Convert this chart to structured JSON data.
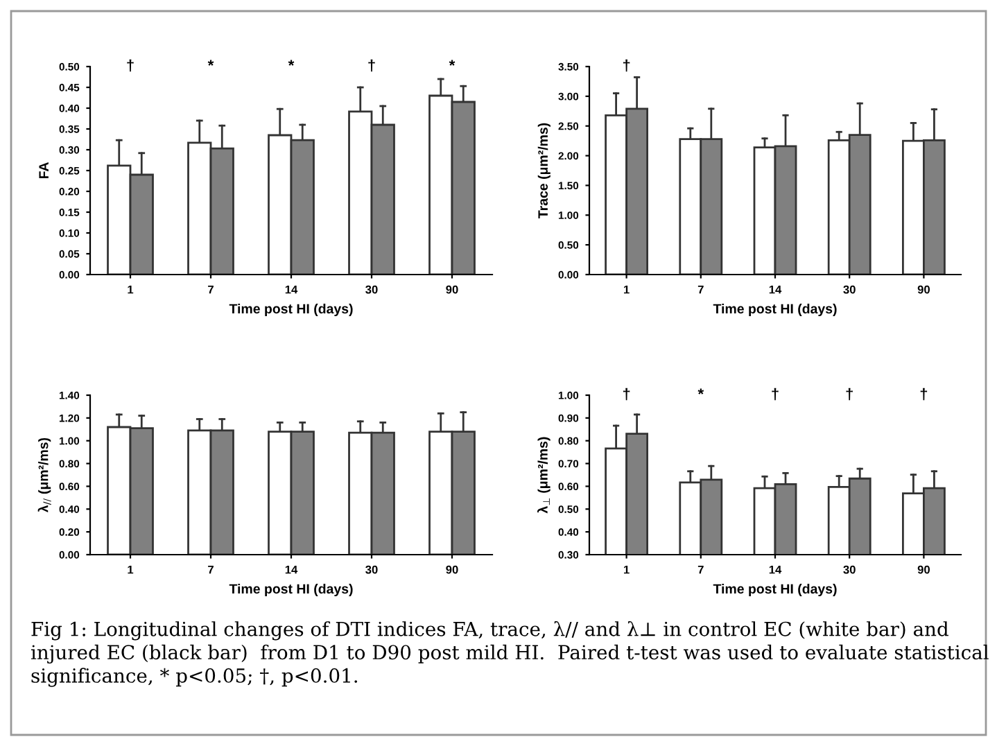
{
  "chart_data": [
    {
      "type": "bar",
      "ylabel": "FA",
      "xlabel": "Time post HI (days)",
      "categories": [
        "1",
        "7",
        "14",
        "30",
        "90"
      ],
      "series": [
        {
          "color": "#ffffff",
          "values": [
            0.262,
            0.317,
            0.335,
            0.392,
            0.43
          ],
          "errors": [
            [
              0.262,
              0.323
            ],
            [
              0.317,
              0.37
            ],
            [
              0.335,
              0.398
            ],
            [
              0.392,
              0.45
            ],
            [
              0.43,
              0.47
            ]
          ]
        },
        {
          "color": "#808080",
          "values": [
            0.24,
            0.303,
            0.323,
            0.36,
            0.415
          ],
          "errors": [
            [
              0.24,
              0.292
            ],
            [
              0.303,
              0.358
            ],
            [
              0.323,
              0.36
            ],
            [
              0.36,
              0.405
            ],
            [
              0.415,
              0.453
            ]
          ]
        }
      ],
      "ylim": [
        0,
        0.5
      ],
      "yticks": [
        {
          "value": 0,
          "label": "0.00"
        },
        {
          "value": 0.05,
          "label": "0.05"
        },
        {
          "value": 0.1,
          "label": "0.10"
        },
        {
          "value": 0.15,
          "label": "0.15"
        },
        {
          "value": 0.2,
          "label": "0.20"
        },
        {
          "value": 0.25,
          "label": "0.25"
        },
        {
          "value": 0.3,
          "label": "0.30"
        },
        {
          "value": 0.35,
          "label": "0.35"
        },
        {
          "value": 0.4,
          "label": "0.40"
        },
        {
          "value": 0.45,
          "label": "0.45"
        },
        {
          "value": 0.5,
          "label": "0.50"
        }
      ],
      "annotations": [
        "†",
        "*",
        "*",
        "†",
        "*",
        "Fig 1: Longitudinal changes of DTI indices FA, trace, λ// and λ⊥ in control EC (white bar) and injured EC (black bar)  from D1 to D90 post mild HI.  Paired t-test was used to evaluate statistical significance, * p<0.05; †, p<0.01."
      ],
      "grid": false
    },
    {
      "type": "bar",
      "ylabel": "Trace (μm²/ms)",
      "xlabel": "Time post HI (days)",
      "categories": [
        "1",
        "7",
        "14",
        "30",
        "90"
      ],
      "series": [
        {
          "color": "#ffffff",
          "values": [
            2.68,
            2.28,
            2.14,
            2.26,
            2.25
          ],
          "errors": [
            [
              2.68,
              3.05
            ],
            [
              2.28,
              2.46
            ],
            [
              2.14,
              2.29
            ],
            [
              2.26,
              2.4
            ],
            [
              2.25,
              2.55
            ]
          ]
        },
        {
          "color": "#808080",
          "values": [
            2.79,
            2.28,
            2.16,
            2.35,
            2.26
          ],
          "errors": [
            [
              2.79,
              3.32
            ],
            [
              2.28,
              2.79
            ],
            [
              2.16,
              2.68
            ],
            [
              2.35,
              2.88
            ],
            [
              2.26,
              2.78
            ]
          ]
        }
      ],
      "ylim": [
        0,
        3.5
      ],
      "yticks": [
        {
          "value": 0,
          "label": "0.00"
        },
        {
          "value": 0.5,
          "label": "0.50"
        },
        {
          "value": 1,
          "label": "1.00"
        },
        {
          "value": 1.5,
          "label": "1.50"
        },
        {
          "value": 2,
          "label": "2.00"
        },
        {
          "value": 2.5,
          "label": "2.50"
        },
        {
          "value": 3,
          "label": "3.00"
        },
        {
          "value": 3.5,
          "label": "3.50"
        }
      ],
      "annotations": [
        "†"
      ],
      "grid": false
    },
    {
      "type": "bar",
      "ylabel": "λ$_{//}$ (μm²/ms)",
      "xlabel": "Time post HI (days)",
      "categories": [
        "1",
        "7",
        "14",
        "30",
        "90"
      ],
      "series": [
        {
          "color": "#ffffff",
          "values": [
            1.12,
            1.09,
            1.08,
            1.07,
            1.08
          ],
          "errors": [
            [
              1.12,
              1.23
            ],
            [
              1.09,
              1.19
            ],
            [
              1.08,
              1.16
            ],
            [
              1.07,
              1.17
            ],
            [
              1.08,
              1.24
            ]
          ]
        },
        {
          "color": "#808080",
          "values": [
            1.11,
            1.09,
            1.08,
            1.07,
            1.08
          ],
          "errors": [
            [
              1.11,
              1.22
            ],
            [
              1.09,
              1.19
            ],
            [
              1.08,
              1.16
            ],
            [
              1.07,
              1.16
            ],
            [
              1.08,
              1.25
            ]
          ]
        }
      ],
      "ylim": [
        0,
        1.4
      ],
      "yticks": [
        {
          "value": 0,
          "label": "0.00"
        },
        {
          "value": 0.2,
          "label": "0.20"
        },
        {
          "value": 0.4,
          "label": "0.40"
        },
        {
          "value": 0.6,
          "label": "0.60"
        },
        {
          "value": 0.8,
          "label": "0.80"
        },
        {
          "value": 1,
          "label": "1.00"
        },
        {
          "value": 1.2,
          "label": "1.20"
        },
        {
          "value": 1.4,
          "label": "1.40"
        }
      ],
      "grid": false
    },
    {
      "type": "bar",
      "ylabel": "λ$_{⊥}$ (μm²/ms)",
      "xlabel": "Time post HI (days)",
      "categories": [
        "1",
        "7",
        "14",
        "30",
        "90"
      ],
      "series": [
        {
          "color": "#ffffff",
          "values": [
            0.766,
            0.617,
            0.592,
            0.597,
            0.569
          ],
          "errors": [
            [
              0.766,
              0.866
            ],
            [
              0.617,
              0.666
            ],
            [
              0.592,
              0.643
            ],
            [
              0.597,
              0.645
            ],
            [
              0.569,
              0.651
            ]
          ]
        },
        {
          "color": "#808080",
          "values": [
            0.831,
            0.629,
            0.609,
            0.634,
            0.592
          ],
          "errors": [
            [
              0.831,
              0.915
            ],
            [
              0.629,
              0.689
            ],
            [
              0.609,
              0.658
            ],
            [
              0.634,
              0.677
            ],
            [
              0.592,
              0.666
            ]
          ]
        }
      ],
      "ylim": [
        0.3,
        1.0
      ],
      "yticks": [
        {
          "value": 0.3,
          "label": "0.30"
        },
        {
          "value": 0.4,
          "label": "0.40"
        },
        {
          "value": 0.5,
          "label": "0.50"
        },
        {
          "value": 0.6,
          "label": "0.60"
        },
        {
          "value": 0.7,
          "label": "0.70"
        },
        {
          "value": 0.8,
          "label": "0.80"
        },
        {
          "value": 0.9,
          "label": "0.90"
        },
        {
          "value": 1.0,
          "label": "1.00"
        }
      ],
      "annotations": [
        "†",
        "*",
        "†",
        "†",
        "†"
      ],
      "grid": false
    }
  ]
}
